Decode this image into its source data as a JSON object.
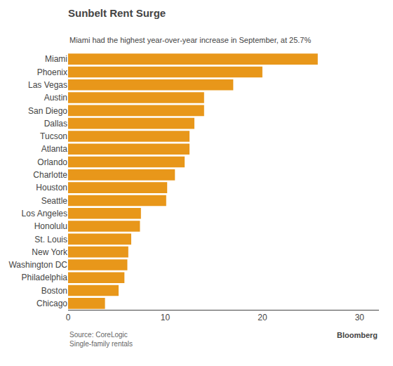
{
  "chart_data": {
    "type": "bar",
    "orientation": "horizontal",
    "title": "Sunbelt Rent Surge",
    "subtitle": "Miami had the highest year-over-year increase in September, at 25.7%",
    "annotations": [
      "Source: CoreLogic",
      "Single-family rentals",
      "Bloomberg"
    ],
    "categories": [
      "Miami",
      "Phoenix",
      "Las Vegas",
      "Austin",
      "San Diego",
      "Dallas",
      "Tucson",
      "Atlanta",
      "Orlando",
      "Charlotte",
      "Houston",
      "Seattle",
      "Los Angeles",
      "Honolulu",
      "St. Louis",
      "New York",
      "Washington DC",
      "Philadelphia",
      "Boston",
      "Chicago"
    ],
    "values": [
      25.7,
      20.0,
      17.0,
      14.0,
      14.0,
      13.0,
      12.5,
      12.5,
      12.0,
      11.0,
      10.2,
      10.1,
      7.5,
      7.4,
      6.5,
      6.2,
      6.1,
      5.8,
      5.2,
      3.8
    ],
    "color": "#E8971A",
    "xlim": [
      0,
      32
    ],
    "xticks": [
      0,
      10,
      20,
      30
    ],
    "grid": false
  }
}
